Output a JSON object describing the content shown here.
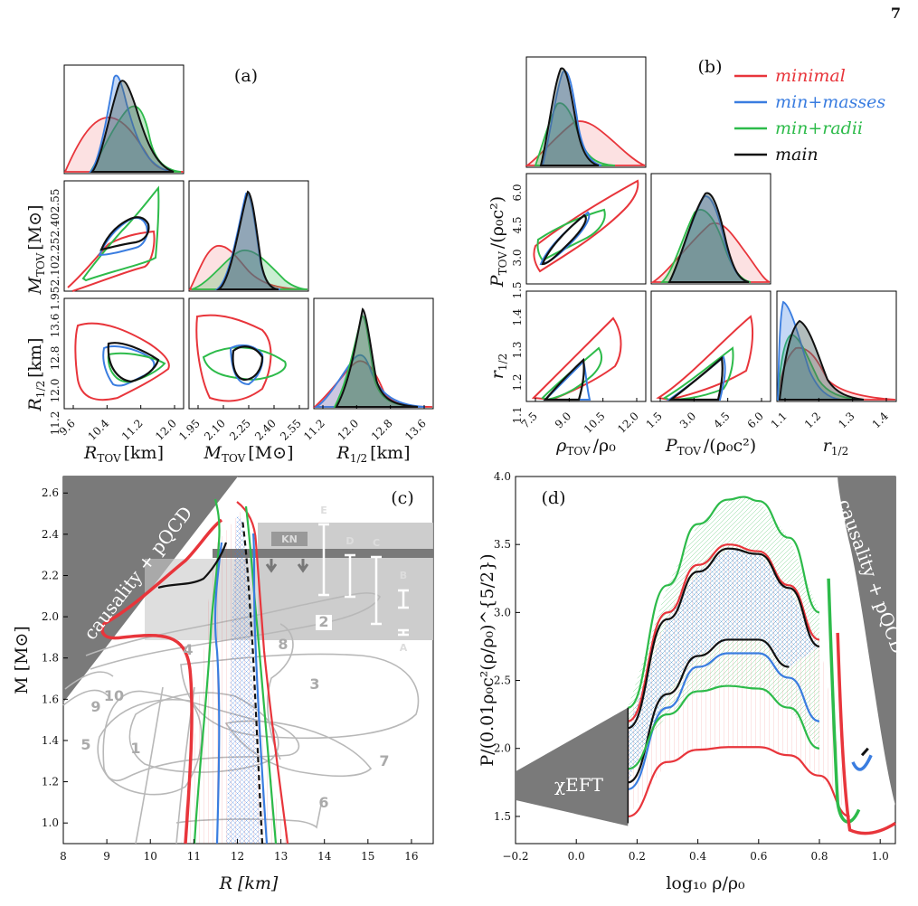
{
  "page_number": "7",
  "colors": {
    "minimal": "#e8353b",
    "min_masses": "#3a7de0",
    "min_radii": "#2dbb4a",
    "main": "#111111",
    "shade": "#7a7a7a",
    "gray_contour": "#b8b8b8"
  },
  "legend": [
    {
      "key": "minimal",
      "label": "minimal"
    },
    {
      "key": "min_masses",
      "label": "min+masses"
    },
    {
      "key": "min_radii",
      "label": "min+radii"
    },
    {
      "key": "main",
      "label": "main"
    }
  ],
  "chart_data": [
    {
      "panel": "(a)",
      "type": "corner",
      "variables": [
        {
          "name": "R_TOV",
          "label_main": "R",
          "label_sub": "TOV",
          "unit": "[km]",
          "ticks": [
            "9.6",
            "10.4",
            "11.2",
            "12.0"
          ],
          "range": [
            9.2,
            12.4
          ]
        },
        {
          "name": "M_TOV",
          "label_main": "M",
          "label_sub": "TOV",
          "unit": "[M⊙]",
          "ticks": [
            "1.95",
            "2.10",
            "2.25",
            "2.40",
            "2.55"
          ],
          "range": [
            1.92,
            2.6
          ]
        },
        {
          "name": "R_1/2",
          "label_main": "R",
          "label_sub": "1/2",
          "unit": "[km]",
          "ticks": [
            "11.2",
            "12.0",
            "12.8",
            "13.6"
          ],
          "range": [
            10.8,
            14.0
          ]
        }
      ]
    },
    {
      "panel": "(b)",
      "type": "corner",
      "variables": [
        {
          "name": "rho_TOV/rho_0",
          "label_main": "ρ",
          "label_sub": "TOV",
          "unit": "/ρ₀",
          "ticks": [
            "7.5",
            "9.0",
            "10.5",
            "12.0"
          ],
          "range": [
            6.6,
            12.2
          ]
        },
        {
          "name": "P_TOV/(rho_0 c^2)",
          "label_main": "P",
          "label_sub": "TOV",
          "unit": "/(ρ₀c²)",
          "ticks": [
            "1.5",
            "3.0",
            "4.5",
            "6.0"
          ],
          "range": [
            1.5,
            7.2
          ]
        },
        {
          "name": "r_1/2",
          "label_main": "r",
          "label_sub": "1/2",
          "unit": "",
          "ticks": [
            "1.1",
            "1.2",
            "1.3",
            "1.4"
          ],
          "range": [
            1.02,
            1.48
          ]
        }
      ]
    },
    {
      "panel": "(c)",
      "type": "line",
      "xlabel": "R [km]",
      "ylabel": "M [M⊙]",
      "xlim": [
        8,
        16.5
      ],
      "ylim": [
        0.9,
        2.68
      ],
      "xticks": [
        "8",
        "9",
        "10",
        "11",
        "12",
        "13",
        "14",
        "15",
        "16"
      ],
      "yticks": [
        "1.0",
        "1.2",
        "1.4",
        "1.6",
        "1.8",
        "2.0",
        "2.2",
        "2.4",
        "2.6"
      ],
      "shaded_label": "causality + pQCD",
      "band_label": "KN",
      "constraint_labels": [
        "E",
        "D",
        "C",
        "B",
        "A"
      ],
      "contour_labels": [
        "1",
        "2",
        "3",
        "4",
        "5",
        "6",
        "7",
        "8",
        "9",
        "10"
      ],
      "series": [
        {
          "key": "minimal",
          "x": [
            10.9,
            11.3,
            11.6,
            12.0,
            12.3,
            12.6,
            12.8,
            13.0
          ],
          "y": [
            0.9,
            1.3,
            1.7,
            2.1,
            2.3,
            2.5,
            2.6,
            0.9
          ]
        },
        {
          "key": "min_masses",
          "x": [
            11.4,
            11.6,
            11.9,
            12.1,
            12.3,
            12.5
          ],
          "y": [
            0.9,
            1.5,
            2.0,
            2.3,
            2.45,
            2.5
          ]
        },
        {
          "key": "min_radii",
          "x": [
            11.3,
            11.6,
            11.9,
            12.2,
            12.4,
            12.6
          ],
          "y": [
            0.9,
            1.5,
            2.0,
            2.35,
            2.55,
            2.6
          ]
        },
        {
          "key": "main",
          "x": [
            11.6,
            11.8,
            12.0,
            12.2,
            12.3
          ],
          "y": [
            1.0,
            1.6,
            2.0,
            2.3,
            2.5
          ]
        }
      ]
    },
    {
      "panel": "(d)",
      "type": "line",
      "xlabel": "log₁₀ ρ/ρ₀",
      "ylabel": "P/(0.01ρ₀c²(ρ/ρ₀)^{5/2})",
      "xlim": [
        -0.2,
        1.05
      ],
      "ylim": [
        1.3,
        4.0
      ],
      "xticks": [
        "−0.2",
        "0.0",
        "0.2",
        "0.4",
        "0.6",
        "0.8",
        "1.0"
      ],
      "yticks": [
        "1.5",
        "2.0",
        "2.5",
        "3.0",
        "3.5",
        "4.0"
      ],
      "shaded_labels": [
        "χEFT",
        "causality + pQCD"
      ],
      "series": [
        {
          "key": "min_radii",
          "name": "upper",
          "x": [
            0.17,
            0.3,
            0.4,
            0.5,
            0.55,
            0.6,
            0.7,
            0.8
          ],
          "y": [
            2.3,
            3.2,
            3.65,
            3.83,
            3.85,
            3.82,
            3.55,
            3.0
          ]
        },
        {
          "key": "minimal",
          "name": "upper",
          "x": [
            0.17,
            0.3,
            0.4,
            0.5,
            0.6,
            0.7,
            0.8
          ],
          "y": [
            2.2,
            3.0,
            3.35,
            3.5,
            3.45,
            3.2,
            2.8
          ]
        },
        {
          "key": "main",
          "name": "upper",
          "x": [
            0.17,
            0.3,
            0.4,
            0.5,
            0.6,
            0.7,
            0.8
          ],
          "y": [
            2.15,
            2.95,
            3.3,
            3.47,
            3.43,
            3.18,
            2.75
          ]
        },
        {
          "key": "main",
          "name": "lower",
          "x": [
            0.17,
            0.3,
            0.4,
            0.5,
            0.6,
            0.7
          ],
          "y": [
            1.75,
            2.4,
            2.68,
            2.8,
            2.8,
            2.6
          ]
        },
        {
          "key": "min_masses",
          "name": "lower",
          "x": [
            0.17,
            0.3,
            0.4,
            0.5,
            0.6,
            0.7,
            0.8
          ],
          "y": [
            1.7,
            2.3,
            2.6,
            2.7,
            2.7,
            2.52,
            2.2
          ]
        },
        {
          "key": "min_radii",
          "name": "lower",
          "x": [
            0.17,
            0.3,
            0.4,
            0.5,
            0.6,
            0.7,
            0.8
          ],
          "y": [
            1.85,
            2.25,
            2.42,
            2.46,
            2.44,
            2.3,
            2.0
          ]
        },
        {
          "key": "minimal",
          "name": "lower",
          "x": [
            0.17,
            0.3,
            0.4,
            0.5,
            0.6,
            0.7,
            0.8,
            0.9
          ],
          "y": [
            1.5,
            1.9,
            1.99,
            2.01,
            2.01,
            1.95,
            1.8,
            1.5
          ]
        }
      ]
    }
  ]
}
